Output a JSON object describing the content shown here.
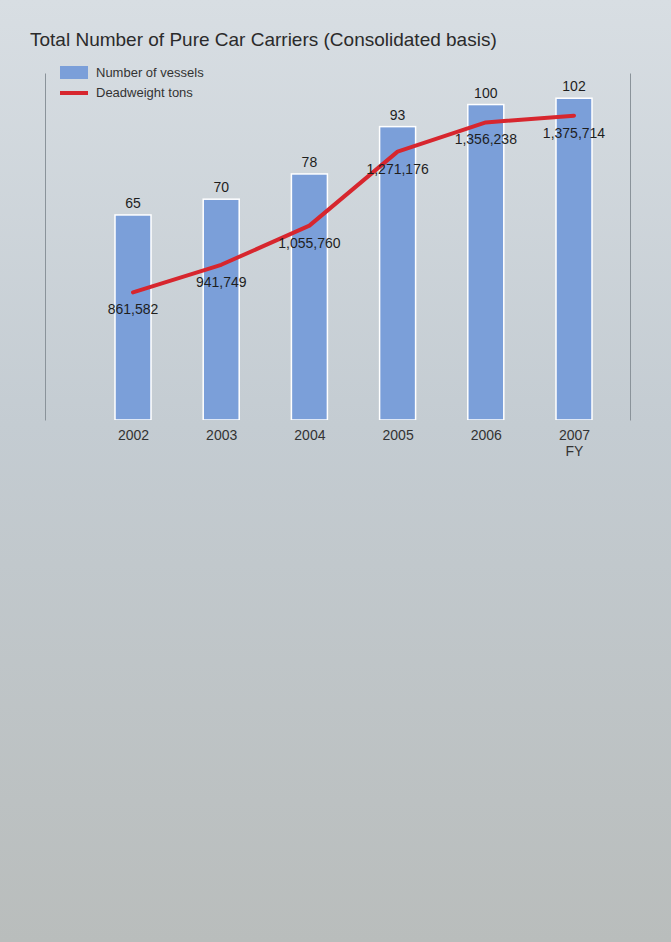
{
  "chart_data": {
    "type": "bar",
    "title": "Total Number of Pure Car Carriers (Consolidated basis)",
    "categories": [
      "2002",
      "2003",
      "2004",
      "2005",
      "2006",
      "2007\nFY"
    ],
    "series": [
      {
        "name": "Number of vessels",
        "type": "bar",
        "color": "#7b9fd9",
        "values": [
          65,
          70,
          78,
          93,
          100,
          102
        ]
      },
      {
        "name": "Deadweight tons",
        "type": "line",
        "color": "#d7262e",
        "axis": "y2",
        "values": [
          861582,
          941749,
          1055760,
          1271176,
          1356238,
          1375714
        ],
        "value_labels": [
          "861,582",
          "941,749",
          "1,055,760",
          "1,271,176",
          "1,356,238",
          "1,375,714"
        ]
      }
    ],
    "ylim": [
      0,
      110
    ],
    "yticks": [],
    "y2lim": [
      490000,
      1500000
    ],
    "y2ticks": [],
    "tick_labels": false,
    "legend": "top-left",
    "data_labels": true,
    "grid": false
  }
}
